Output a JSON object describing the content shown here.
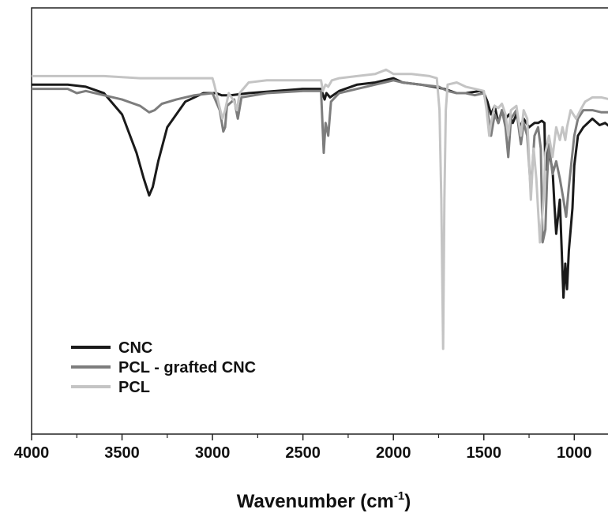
{
  "chart_data": {
    "type": "line",
    "xlabel": "Wavenumber (cm",
    "xlabel_sup": "-1",
    "xlabel_close": ")",
    "ylabel": "",
    "xlim": [
      4000,
      770
    ],
    "x_reversed": true,
    "ylim": [
      0,
      100
    ],
    "y_axis_ticks": false,
    "xticks": [
      4000,
      3500,
      3000,
      2500,
      2000,
      1500,
      1000
    ],
    "xtick_labels": [
      "4000",
      "3500",
      "3000",
      "2500",
      "2000",
      "1500",
      "1000"
    ],
    "grid": false,
    "legend_position": "bottom-left",
    "series": [
      {
        "name": "CNC",
        "color": "#1a1a1a",
        "points": [
          [
            4000,
            82
          ],
          [
            3800,
            82
          ],
          [
            3700,
            81.5
          ],
          [
            3600,
            80
          ],
          [
            3500,
            75
          ],
          [
            3420,
            66
          ],
          [
            3380,
            60
          ],
          [
            3350,
            56
          ],
          [
            3330,
            58
          ],
          [
            3300,
            64
          ],
          [
            3250,
            72
          ],
          [
            3150,
            78
          ],
          [
            3050,
            80
          ],
          [
            2980,
            80
          ],
          [
            2950,
            79.5
          ],
          [
            2900,
            79.5
          ],
          [
            2800,
            80
          ],
          [
            2500,
            81
          ],
          [
            2400,
            81
          ],
          [
            2380,
            78.5
          ],
          [
            2370,
            80
          ],
          [
            2350,
            79
          ],
          [
            2300,
            80.5
          ],
          [
            2200,
            82
          ],
          [
            2100,
            82.5
          ],
          [
            2050,
            83
          ],
          [
            2000,
            83.5
          ],
          [
            1950,
            82.5
          ],
          [
            1850,
            82
          ],
          [
            1780,
            81.5
          ],
          [
            1720,
            81
          ],
          [
            1650,
            80
          ],
          [
            1600,
            80
          ],
          [
            1520,
            80.5
          ],
          [
            1500,
            80
          ],
          [
            1480,
            78
          ],
          [
            1460,
            75
          ],
          [
            1440,
            77
          ],
          [
            1420,
            73
          ],
          [
            1400,
            76
          ],
          [
            1380,
            74
          ],
          [
            1360,
            75
          ],
          [
            1340,
            73
          ],
          [
            1320,
            75
          ],
          [
            1300,
            72
          ],
          [
            1280,
            74
          ],
          [
            1250,
            72
          ],
          [
            1220,
            73
          ],
          [
            1200,
            73
          ],
          [
            1180,
            73.5
          ],
          [
            1165,
            73
          ],
          [
            1160,
            62
          ],
          [
            1150,
            68
          ],
          [
            1120,
            62
          ],
          [
            1110,
            54
          ],
          [
            1100,
            47
          ],
          [
            1080,
            55
          ],
          [
            1060,
            32
          ],
          [
            1050,
            40
          ],
          [
            1040,
            34
          ],
          [
            1030,
            43
          ],
          [
            1010,
            53
          ],
          [
            1000,
            63
          ],
          [
            980,
            70
          ],
          [
            950,
            72
          ],
          [
            900,
            74
          ],
          [
            860,
            72.5
          ],
          [
            830,
            73
          ],
          [
            800,
            72
          ],
          [
            770,
            71
          ]
        ]
      },
      {
        "name": "PCL - grafted CNC",
        "color": "#7d7d7d",
        "points": [
          [
            4000,
            81
          ],
          [
            3900,
            81
          ],
          [
            3800,
            81
          ],
          [
            3750,
            80
          ],
          [
            3700,
            80.5
          ],
          [
            3600,
            79.5
          ],
          [
            3500,
            78.5
          ],
          [
            3400,
            77
          ],
          [
            3350,
            75.5
          ],
          [
            3320,
            76
          ],
          [
            3280,
            77.5
          ],
          [
            3200,
            78.5
          ],
          [
            3100,
            79.5
          ],
          [
            3000,
            80
          ],
          [
            2960,
            76
          ],
          [
            2940,
            71
          ],
          [
            2930,
            72
          ],
          [
            2920,
            77
          ],
          [
            2880,
            78.5
          ],
          [
            2860,
            74
          ],
          [
            2840,
            79
          ],
          [
            2700,
            80
          ],
          [
            2500,
            80.5
          ],
          [
            2400,
            80.5
          ],
          [
            2385,
            66
          ],
          [
            2375,
            73
          ],
          [
            2360,
            70
          ],
          [
            2345,
            78
          ],
          [
            2300,
            80
          ],
          [
            2200,
            81
          ],
          [
            2150,
            81.5
          ],
          [
            2100,
            82
          ],
          [
            2050,
            82.5
          ],
          [
            2000,
            83
          ],
          [
            1950,
            82.5
          ],
          [
            1850,
            82
          ],
          [
            1750,
            81.5
          ],
          [
            1700,
            80.5
          ],
          [
            1650,
            80
          ],
          [
            1600,
            80
          ],
          [
            1550,
            79.5
          ],
          [
            1500,
            80
          ],
          [
            1480,
            76
          ],
          [
            1460,
            70
          ],
          [
            1440,
            75
          ],
          [
            1420,
            73
          ],
          [
            1400,
            76
          ],
          [
            1380,
            72
          ],
          [
            1365,
            65
          ],
          [
            1350,
            74
          ],
          [
            1320,
            76
          ],
          [
            1295,
            68
          ],
          [
            1280,
            73
          ],
          [
            1260,
            70
          ],
          [
            1240,
            57
          ],
          [
            1220,
            70
          ],
          [
            1200,
            72
          ],
          [
            1185,
            67
          ],
          [
            1175,
            45
          ],
          [
            1160,
            48
          ],
          [
            1150,
            60
          ],
          [
            1140,
            68
          ],
          [
            1120,
            61
          ],
          [
            1100,
            64
          ],
          [
            1080,
            60
          ],
          [
            1060,
            55
          ],
          [
            1045,
            51
          ],
          [
            1030,
            58
          ],
          [
            1000,
            70
          ],
          [
            980,
            74
          ],
          [
            950,
            76
          ],
          [
            900,
            76
          ],
          [
            850,
            75.5
          ],
          [
            800,
            75.5
          ],
          [
            770,
            75.5
          ]
        ]
      },
      {
        "name": "PCL",
        "color": "#c4c4c4",
        "points": [
          [
            4000,
            84
          ],
          [
            3800,
            84
          ],
          [
            3600,
            84
          ],
          [
            3400,
            83.5
          ],
          [
            3200,
            83.5
          ],
          [
            3000,
            83.5
          ],
          [
            2990,
            82
          ],
          [
            2960,
            76.5
          ],
          [
            2945,
            74
          ],
          [
            2930,
            76
          ],
          [
            2910,
            80
          ],
          [
            2880,
            78
          ],
          [
            2865,
            76
          ],
          [
            2850,
            80
          ],
          [
            2800,
            82.5
          ],
          [
            2700,
            83
          ],
          [
            2500,
            83
          ],
          [
            2400,
            83
          ],
          [
            2390,
            80.5
          ],
          [
            2375,
            82
          ],
          [
            2360,
            81.5
          ],
          [
            2340,
            83
          ],
          [
            2300,
            83.5
          ],
          [
            2200,
            84
          ],
          [
            2100,
            84.5
          ],
          [
            2040,
            85.5
          ],
          [
            2020,
            85
          ],
          [
            2000,
            84.5
          ],
          [
            1900,
            84.5
          ],
          [
            1800,
            84
          ],
          [
            1760,
            83.5
          ],
          [
            1745,
            76
          ],
          [
            1735,
            55
          ],
          [
            1725,
            20
          ],
          [
            1718,
            55
          ],
          [
            1710,
            76
          ],
          [
            1700,
            82
          ],
          [
            1650,
            82.5
          ],
          [
            1600,
            81.5
          ],
          [
            1550,
            81
          ],
          [
            1500,
            80.5
          ],
          [
            1485,
            76
          ],
          [
            1470,
            70
          ],
          [
            1460,
            73
          ],
          [
            1440,
            77
          ],
          [
            1420,
            76.5
          ],
          [
            1400,
            77.5
          ],
          [
            1380,
            75
          ],
          [
            1365,
            70
          ],
          [
            1350,
            76
          ],
          [
            1320,
            77
          ],
          [
            1295,
            70
          ],
          [
            1280,
            76
          ],
          [
            1260,
            74
          ],
          [
            1240,
            55
          ],
          [
            1225,
            67
          ],
          [
            1210,
            60
          ],
          [
            1190,
            45
          ],
          [
            1170,
            55
          ],
          [
            1160,
            66
          ],
          [
            1140,
            70
          ],
          [
            1120,
            65
          ],
          [
            1100,
            72
          ],
          [
            1080,
            69
          ],
          [
            1065,
            72
          ],
          [
            1050,
            69
          ],
          [
            1040,
            72
          ],
          [
            1020,
            76
          ],
          [
            990,
            74
          ],
          [
            960,
            76.5
          ],
          [
            940,
            78
          ],
          [
            900,
            79
          ],
          [
            850,
            79
          ],
          [
            800,
            78.5
          ],
          [
            770,
            78
          ]
        ]
      }
    ]
  }
}
